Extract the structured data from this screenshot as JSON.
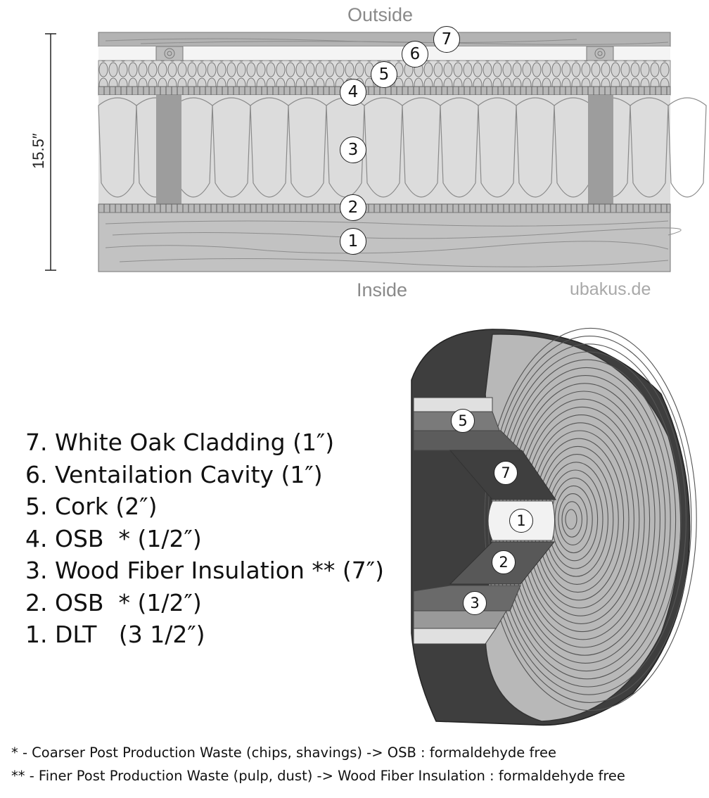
{
  "section_diagram": {
    "outside_label": "Outside",
    "inside_label": "Inside",
    "thickness_label": "15.5″",
    "credit": "ubakus.de",
    "callouts": [
      "1",
      "2",
      "3",
      "4",
      "5",
      "6",
      "7"
    ]
  },
  "log_diagram": {
    "markers": [
      "1",
      "2",
      "3",
      "5",
      "7"
    ]
  },
  "legend": {
    "items": [
      "7. White Oak Cladding (1″)",
      "6. Ventailation Cavity (1″)",
      "5. Cork (2″)",
      "4. OSB  * (1/2″)",
      "3. Wood Fiber Insulation ** (7″)",
      "2. OSB  * (1/2″)",
      "1. DLT   (3 1/2″)"
    ]
  },
  "footnotes": {
    "single_star": "* - Coarser Post Production Waste (chips, shavings) -> OSB : formaldehyde free",
    "double_star": "** - Finer Post Production Waste (pulp, dust) -> Wood Fiber Insulation : formaldehyde free"
  }
}
